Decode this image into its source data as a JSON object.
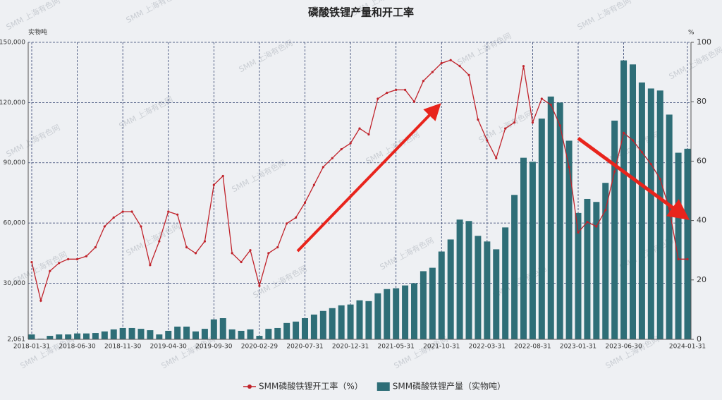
{
  "watermark": "SMM 上海有色网",
  "chart_data": {
    "type": "bar-line",
    "title": "磷酸铁锂产量和开工率",
    "ylabel": "实物吨",
    "y2label": "%",
    "categories": [
      "2018-01-31",
      null,
      null,
      null,
      null,
      "2018-06-30",
      null,
      null,
      null,
      null,
      "2018-11-30",
      null,
      null,
      null,
      null,
      "2019-04-30",
      null,
      null,
      null,
      null,
      "2019-09-30",
      null,
      null,
      null,
      null,
      "2020-02-29",
      null,
      null,
      null,
      null,
      "2020-07-31",
      null,
      null,
      null,
      null,
      "2020-12-31",
      null,
      null,
      null,
      null,
      "2021-05-31",
      null,
      null,
      null,
      null,
      "2021-10-31",
      null,
      null,
      null,
      null,
      "2022-03-31",
      null,
      null,
      null,
      null,
      "2022-08-31",
      null,
      null,
      null,
      null,
      "2023-01-31",
      null,
      null,
      null,
      null,
      "2023-06-30",
      null,
      null,
      null,
      null,
      null,
      null,
      "2024-01-31"
    ],
    "ylim": [
      2061,
      150000
    ],
    "yticks": [
      {
        "value": 2061,
        "label": "2,061"
      },
      {
        "value": 30000,
        "label": "30,000"
      },
      {
        "value": 60000,
        "label": "60,000"
      },
      {
        "value": 90000,
        "label": "90,000"
      },
      {
        "value": 120000,
        "label": "120,000"
      },
      {
        "value": 150000,
        "label": "150,000"
      }
    ],
    "y2lim": [
      0,
      100
    ],
    "y2ticks": [
      0,
      20,
      40,
      60,
      80,
      100
    ],
    "grid": true,
    "legend": "bottom",
    "series": [
      {
        "name": "SMM磷酸铁锂开工率（%）",
        "kind": "line",
        "axis": "y2",
        "color": "#c0222a",
        "values": [
          26,
          13,
          23,
          25.7,
          27,
          27,
          28,
          31,
          38,
          41,
          43,
          43,
          38,
          25,
          33,
          43,
          42,
          31,
          29,
          33,
          52,
          55,
          29,
          26,
          30,
          18,
          29,
          31,
          39,
          41,
          46,
          52,
          58,
          61,
          64,
          66,
          71,
          69,
          81,
          83,
          84,
          84,
          80,
          87,
          90,
          93,
          94,
          92,
          89,
          74,
          67,
          61,
          71,
          73,
          92,
          73,
          81,
          79,
          72,
          58,
          36,
          39.5,
          38,
          43.5,
          56.5,
          69.5,
          67,
          63,
          59,
          54,
          44,
          27,
          27
        ]
      },
      {
        "name": "SMM磷酸铁锂产量（实物吨）",
        "kind": "bar",
        "axis": "y",
        "color": "#2e6e77",
        "values": [
          4500,
          2400,
          3800,
          4500,
          4500,
          5000,
          5000,
          5200,
          6000,
          7000,
          7700,
          7700,
          7300,
          6600,
          4500,
          6300,
          8400,
          8400,
          6000,
          7300,
          12000,
          12600,
          7000,
          6300,
          7000,
          3800,
          7300,
          7700,
          10200,
          10900,
          12600,
          14400,
          16200,
          17600,
          19000,
          19400,
          21500,
          21100,
          25000,
          27100,
          27500,
          28900,
          30000,
          36000,
          37700,
          45800,
          51800,
          61700,
          61000,
          53600,
          50800,
          46900,
          57800,
          74000,
          92500,
          90500,
          112000,
          123000,
          120000,
          101000,
          65000,
          72000,
          70500,
          80000,
          111000,
          141000,
          139000,
          130000,
          127000,
          126000,
          114000,
          95000,
          97000
        ]
      }
    ]
  }
}
